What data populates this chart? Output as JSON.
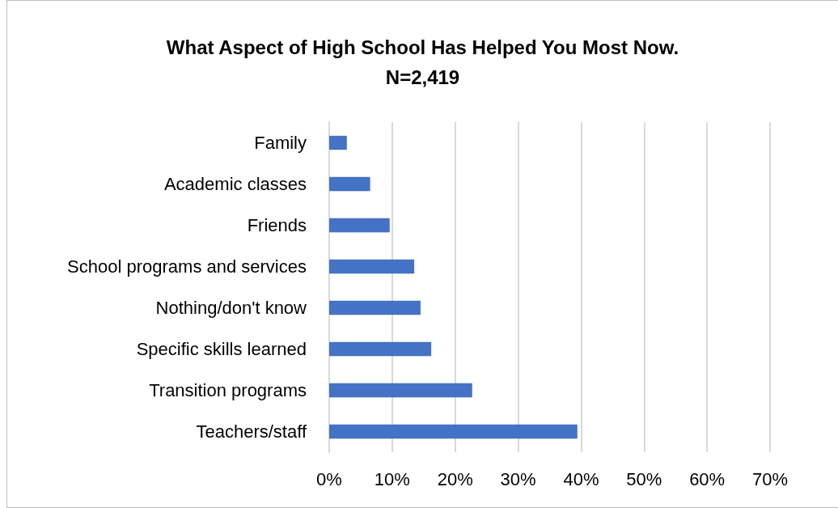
{
  "chart_data": {
    "type": "bar",
    "orientation": "horizontal",
    "title": "What Aspect of High School Has Helped You Most Now.\nN=2,419",
    "categories": [
      "Family",
      "Academic classes",
      "Friends",
      "School programs and services",
      "Nothing/don't know",
      "Specific skills learned",
      "Transition programs",
      "Teachers/staff"
    ],
    "values": [
      2.8,
      6.5,
      9.6,
      13.5,
      14.5,
      16.2,
      22.7,
      39.4
    ],
    "color": "#4472c4",
    "xlim": [
      0,
      70
    ],
    "xticks": [
      {
        "value": 0,
        "label": "0%"
      },
      {
        "value": 10,
        "label": "10%"
      },
      {
        "value": 20,
        "label": "20%"
      },
      {
        "value": 30,
        "label": "30%"
      },
      {
        "value": 40,
        "label": "40%"
      },
      {
        "value": 50,
        "label": "50%"
      },
      {
        "value": 60,
        "label": "60%"
      },
      {
        "value": 70,
        "label": "70%"
      }
    ],
    "grid": "x"
  }
}
